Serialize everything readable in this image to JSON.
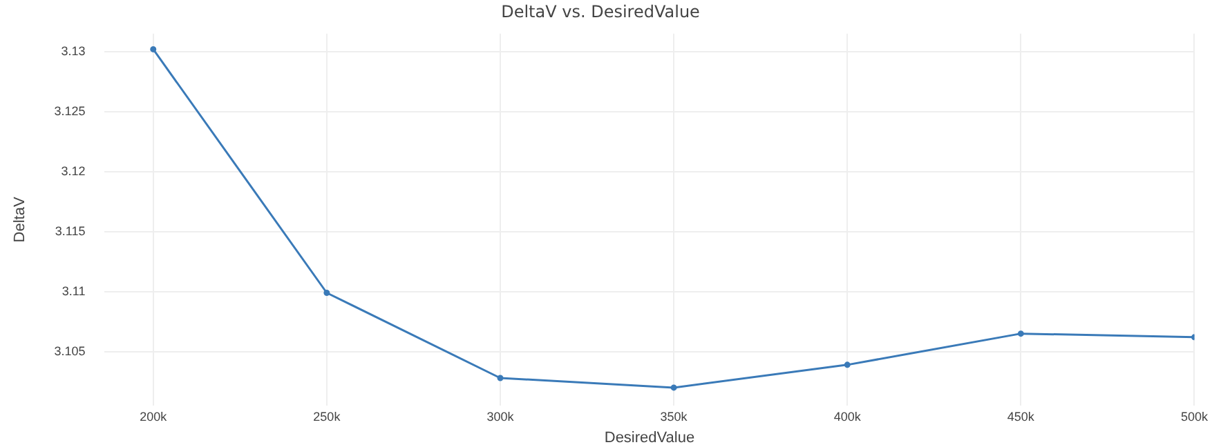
{
  "chart_data": {
    "type": "line",
    "title": "DeltaV vs. DesiredValue",
    "xlabel": "DesiredValue",
    "ylabel": "DeltaV",
    "x": [
      200000,
      250000,
      300000,
      350000,
      400000,
      450000,
      500000
    ],
    "series": [
      {
        "color": "#3a7ab8",
        "values": [
          3.1302,
          3.1099,
          3.1028,
          3.102,
          3.1039,
          3.1065,
          3.1062
        ]
      }
    ],
    "xlim": [
      186000,
      500000
    ],
    "xticks": [
      {
        "value": 200000,
        "label": "200k"
      },
      {
        "value": 250000,
        "label": "250k"
      },
      {
        "value": 300000,
        "label": "300k"
      },
      {
        "value": 350000,
        "label": "350k"
      },
      {
        "value": 400000,
        "label": "400k"
      },
      {
        "value": 450000,
        "label": "450k"
      },
      {
        "value": 500000,
        "label": "500k"
      }
    ],
    "ylim": [
      3.1005,
      3.1315
    ],
    "yticks": [
      3.105,
      3.11,
      3.115,
      3.12,
      3.125,
      3.13
    ],
    "grid": true,
    "legend": false,
    "marker": "circle",
    "line_style": "solid"
  }
}
